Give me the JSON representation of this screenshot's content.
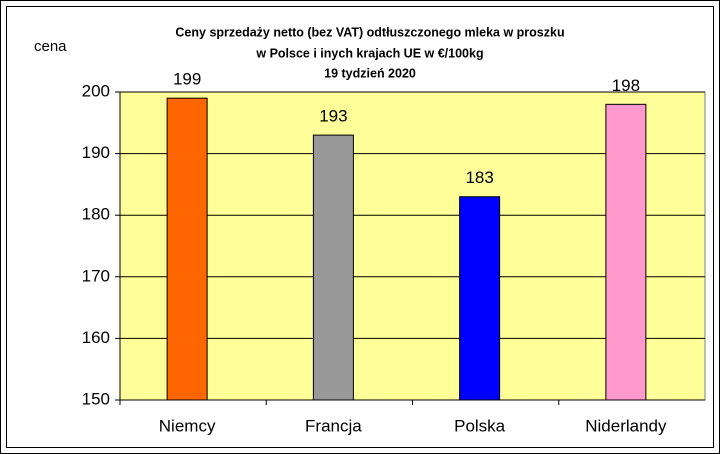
{
  "chart_data": {
    "type": "bar",
    "title": [
      "Ceny sprzedaży netto  (bez VAT) odtłuszczonego mleka w proszku",
      "w Polsce i inych  krajach UE w €/100kg",
      "19  tydzień 2020"
    ],
    "y_label": "cena",
    "categories": [
      "Niemcy",
      "Francja",
      "Polska",
      "Niderlandy"
    ],
    "values": [
      199,
      193,
      183,
      198
    ],
    "colors": [
      "#ff6600",
      "#999999",
      "#0000ff",
      "#ff99cc"
    ],
    "ylim": [
      150,
      200
    ],
    "yticks": [
      150,
      160,
      170,
      180,
      190,
      200
    ],
    "grid": true
  }
}
